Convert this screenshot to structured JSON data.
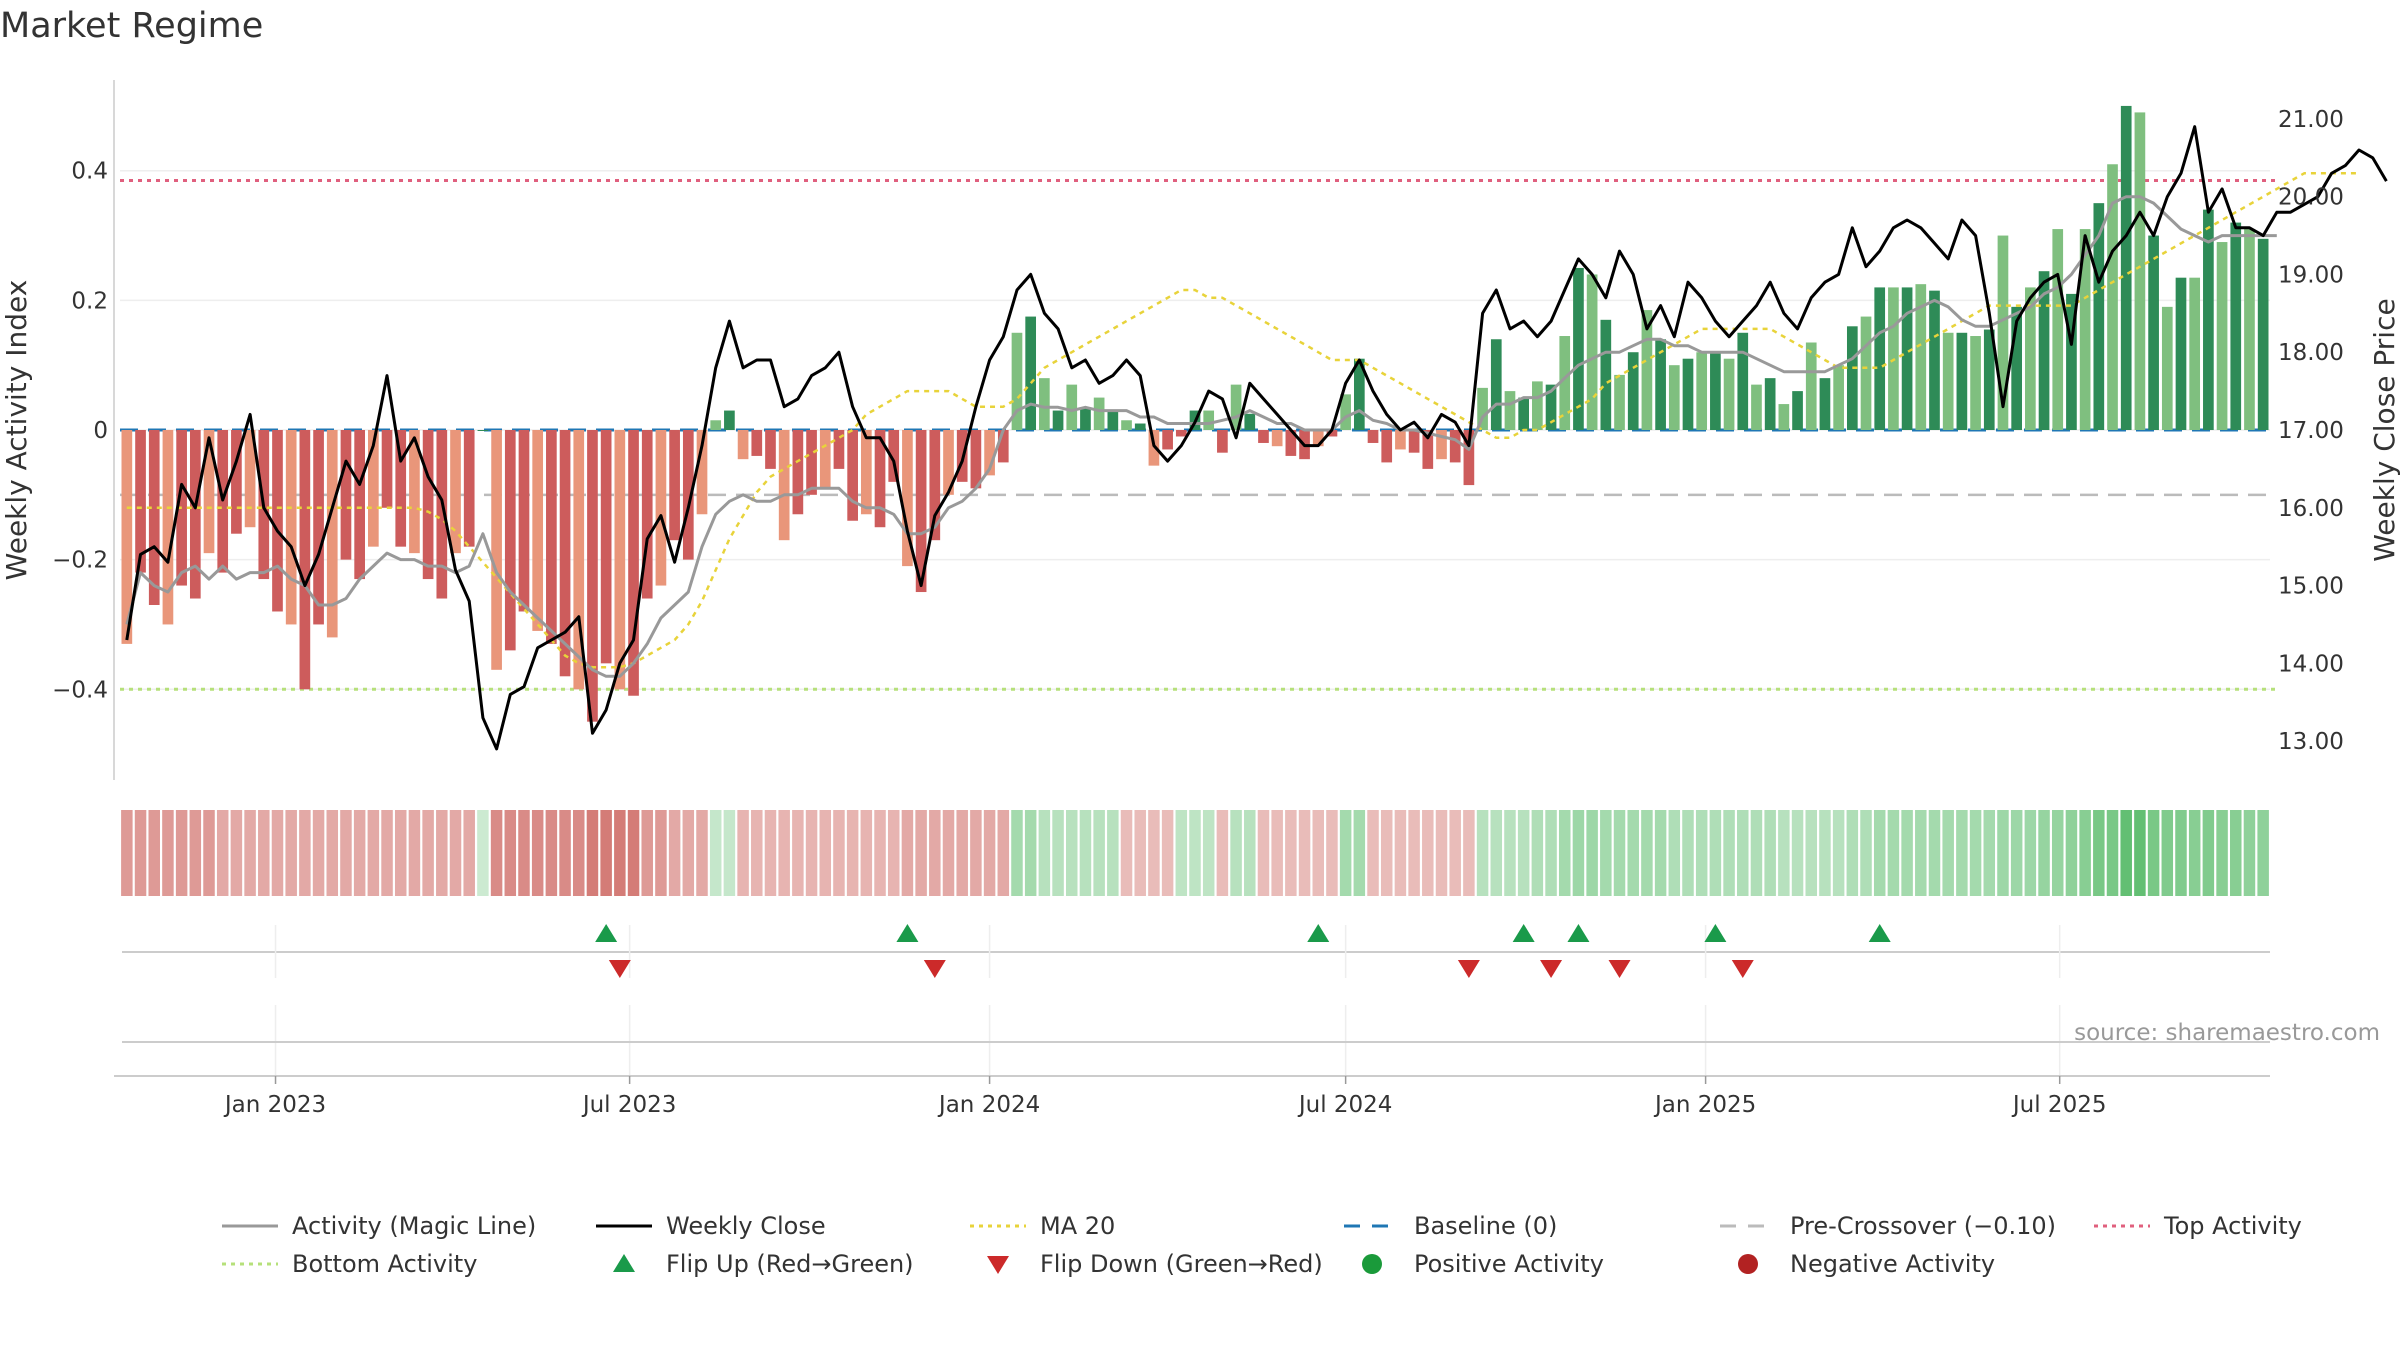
{
  "title": "Market Regime",
  "source_note": "source: sharemaestro.com",
  "colors": {
    "pos_strong": "#2e8b57",
    "pos_light": "#7fbf7f",
    "neg_strong": "#cd5c5c",
    "neg_light": "#e9967a",
    "magic_line": "#999999",
    "close_line": "#000000",
    "ma20": "#e8d33a",
    "baseline": "#1f77b4",
    "precross": "#bbbbbb",
    "top_activity": "#e0607e",
    "bottom_activity": "#b6e07a",
    "flip_up": "#1a9a4a",
    "flip_down": "#cc2a2a",
    "pos_dot": "#1a9a3a",
    "neg_dot": "#b22222"
  },
  "chart_data": {
    "type": "bar",
    "x_start": "2022-10-17",
    "x_step_days": 7,
    "x_ticks": [
      "Jan 2023",
      "Jul 2023",
      "Jan 2024",
      "Jul 2024",
      "Jan 2025",
      "Jul 2025"
    ],
    "x_tick_dates": [
      "2023-01-01",
      "2023-07-01",
      "2024-01-01",
      "2024-07-01",
      "2025-01-01",
      "2025-07-01"
    ],
    "ylabel_left": "Weekly Activity Index",
    "ylabel_right": "Weekly Close Price",
    "ylim_left": [
      -0.54,
      0.54
    ],
    "ylim_right": [
      12.5,
      21.5
    ],
    "yticks_left": [
      "−0.4",
      "−0.2",
      "0",
      "0.2",
      "0.4"
    ],
    "yticks_left_values": [
      -0.4,
      -0.2,
      0,
      0.2,
      0.4
    ],
    "yticks_right": [
      "13.00",
      "14.00",
      "15.00",
      "16.00",
      "17.00",
      "18.00",
      "19.00",
      "20.00",
      "21.00"
    ],
    "yticks_right_values": [
      13,
      14,
      15,
      16,
      17,
      18,
      19,
      20,
      21
    ],
    "reference_lines": {
      "baseline": 0,
      "pre_crossover": -0.1,
      "top_activity": 0.385,
      "bottom_activity": -0.4
    },
    "activity_bars": [
      -0.33,
      -0.22,
      -0.27,
      -0.3,
      -0.24,
      -0.26,
      -0.19,
      -0.22,
      -0.16,
      -0.15,
      -0.23,
      -0.28,
      -0.3,
      -0.4,
      -0.3,
      -0.32,
      -0.2,
      -0.23,
      -0.18,
      -0.12,
      -0.18,
      -0.19,
      -0.23,
      -0.26,
      -0.19,
      -0.18,
      -0.0,
      -0.37,
      -0.34,
      -0.28,
      -0.31,
      -0.33,
      -0.38,
      -0.4,
      -0.45,
      -0.36,
      -0.4,
      -0.41,
      -0.26,
      -0.24,
      -0.17,
      -0.2,
      -0.13,
      0.015,
      0.03,
      -0.045,
      -0.04,
      -0.06,
      -0.17,
      -0.13,
      -0.1,
      -0.09,
      -0.06,
      -0.14,
      -0.13,
      -0.15,
      -0.08,
      -0.21,
      -0.25,
      -0.17,
      -0.1,
      -0.08,
      -0.09,
      -0.07,
      -0.05,
      0.15,
      0.175,
      0.08,
      0.03,
      0.07,
      0.035,
      0.05,
      0.03,
      0.015,
      0.01,
      -0.055,
      -0.03,
      -0.01,
      0.03,
      0.03,
      -0.035,
      0.07,
      0.025,
      -0.02,
      -0.025,
      -0.04,
      -0.045,
      -0.025,
      -0.01,
      0.055,
      0.11,
      -0.02,
      -0.05,
      -0.03,
      -0.035,
      -0.06,
      -0.045,
      -0.05,
      -0.085,
      0.065,
      0.14,
      0.06,
      0.05,
      0.075,
      0.07,
      0.145,
      0.25,
      0.24,
      0.17,
      0.085,
      0.12,
      0.185,
      0.14,
      0.1,
      0.11,
      0.12,
      0.12,
      0.11,
      0.15,
      0.07,
      0.08,
      0.04,
      0.06,
      0.135,
      0.08,
      0.1,
      0.16,
      0.175,
      0.22,
      0.22,
      0.22,
      0.225,
      0.215,
      0.15,
      0.15,
      0.145,
      0.155,
      0.3,
      0.19,
      0.22,
      0.245,
      0.31,
      0.21,
      0.31,
      0.35,
      0.41,
      0.5,
      0.49,
      0.3,
      0.19,
      0.235,
      0.235,
      0.34,
      0.29,
      0.32,
      0.31,
      0.295
    ],
    "weekly_close": [
      14.3,
      15.4,
      15.5,
      15.3,
      16.3,
      16.0,
      16.9,
      16.1,
      16.6,
      17.2,
      16.0,
      15.7,
      15.5,
      15.0,
      15.4,
      16.0,
      16.6,
      16.3,
      16.8,
      17.7,
      16.6,
      16.9,
      16.4,
      16.1,
      15.2,
      14.8,
      13.3,
      12.9,
      13.6,
      13.7,
      14.2,
      14.3,
      14.4,
      14.6,
      13.1,
      13.4,
      14.0,
      14.3,
      15.6,
      15.9,
      15.3,
      16.0,
      16.8,
      17.8,
      18.4,
      17.8,
      17.9,
      17.9,
      17.3,
      17.4,
      17.7,
      17.8,
      18.0,
      17.3,
      16.9,
      16.9,
      16.6,
      15.7,
      15.0,
      15.9,
      16.2,
      16.6,
      17.3,
      17.9,
      18.2,
      18.8,
      19.0,
      18.5,
      18.3,
      17.8,
      17.9,
      17.6,
      17.7,
      17.9,
      17.7,
      16.8,
      16.6,
      16.8,
      17.1,
      17.5,
      17.4,
      16.9,
      17.6,
      17.4,
      17.2,
      17.0,
      16.8,
      16.8,
      17.0,
      17.6,
      17.9,
      17.5,
      17.2,
      17.0,
      17.1,
      16.9,
      17.2,
      17.1,
      16.8,
      18.5,
      18.8,
      18.3,
      18.4,
      18.2,
      18.4,
      18.8,
      19.2,
      19.0,
      18.7,
      19.3,
      19.0,
      18.3,
      18.6,
      18.2,
      18.9,
      18.7,
      18.4,
      18.2,
      18.4,
      18.6,
      18.9,
      18.5,
      18.3,
      18.7,
      18.9,
      19.0,
      19.6,
      19.1,
      19.3,
      19.6,
      19.7,
      19.6,
      19.4,
      19.2,
      19.7,
      19.5,
      18.5,
      17.3,
      18.4,
      18.7,
      18.9,
      19.0,
      18.1,
      19.5,
      18.9,
      19.3,
      19.5,
      19.8,
      19.5,
      20.0,
      20.3,
      20.9,
      19.8,
      20.1,
      19.6,
      19.6,
      19.5,
      19.8,
      19.8,
      19.9,
      20.0,
      20.3,
      20.4,
      20.6,
      20.5,
      20.2
    ],
    "magic_line": [
      -0.3,
      -0.22,
      -0.24,
      -0.25,
      -0.22,
      -0.21,
      -0.23,
      -0.21,
      -0.23,
      -0.22,
      -0.22,
      -0.21,
      -0.23,
      -0.24,
      -0.27,
      -0.27,
      -0.26,
      -0.23,
      -0.21,
      -0.19,
      -0.2,
      -0.2,
      -0.21,
      -0.21,
      -0.22,
      -0.21,
      -0.16,
      -0.22,
      -0.25,
      -0.27,
      -0.29,
      -0.31,
      -0.33,
      -0.35,
      -0.37,
      -0.38,
      -0.38,
      -0.36,
      -0.33,
      -0.29,
      -0.27,
      -0.25,
      -0.18,
      -0.13,
      -0.11,
      -0.1,
      -0.11,
      -0.11,
      -0.1,
      -0.1,
      -0.09,
      -0.09,
      -0.09,
      -0.11,
      -0.12,
      -0.12,
      -0.13,
      -0.16,
      -0.16,
      -0.15,
      -0.12,
      -0.11,
      -0.09,
      -0.06,
      0.0,
      0.03,
      0.04,
      0.035,
      0.035,
      0.03,
      0.035,
      0.03,
      0.03,
      0.03,
      0.02,
      0.02,
      0.01,
      0.01,
      0.01,
      0.01,
      0.015,
      0.02,
      0.03,
      0.02,
      0.01,
      0.01,
      0.0,
      0.0,
      0.0,
      0.02,
      0.03,
      0.015,
      0.01,
      0.0,
      0.0,
      -0.005,
      -0.01,
      -0.015,
      -0.03,
      0.02,
      0.04,
      0.04,
      0.05,
      0.05,
      0.06,
      0.08,
      0.1,
      0.11,
      0.12,
      0.12,
      0.13,
      0.14,
      0.14,
      0.13,
      0.13,
      0.12,
      0.12,
      0.12,
      0.12,
      0.11,
      0.1,
      0.09,
      0.09,
      0.09,
      0.09,
      0.1,
      0.11,
      0.13,
      0.15,
      0.16,
      0.18,
      0.19,
      0.2,
      0.19,
      0.17,
      0.16,
      0.16,
      0.17,
      0.18,
      0.19,
      0.21,
      0.22,
      0.24,
      0.27,
      0.3,
      0.35,
      0.36,
      0.36,
      0.35,
      0.33,
      0.31,
      0.3,
      0.29,
      0.3,
      0.3,
      0.3,
      0.3,
      0.3
    ],
    "ma20": [
      16.0,
      16.0,
      16.0,
      16.0,
      16.0,
      16.0,
      16.0,
      16.0,
      16.0,
      16.0,
      16.0,
      16.0,
      16.0,
      16.0,
      16.0,
      16.0,
      16.0,
      16.0,
      16.0,
      16.0,
      16.0,
      16.0,
      15.95,
      15.85,
      15.7,
      15.5,
      15.3,
      15.1,
      14.9,
      14.7,
      14.5,
      14.3,
      14.1,
      14.0,
      13.95,
      13.95,
      13.95,
      14.0,
      14.1,
      14.2,
      14.3,
      14.5,
      14.8,
      15.2,
      15.6,
      15.9,
      16.2,
      16.4,
      16.5,
      16.6,
      16.7,
      16.8,
      16.9,
      17.0,
      17.2,
      17.3,
      17.4,
      17.5,
      17.5,
      17.5,
      17.5,
      17.4,
      17.3,
      17.3,
      17.3,
      17.4,
      17.6,
      17.8,
      17.9,
      18.0,
      18.1,
      18.2,
      18.3,
      18.4,
      18.5,
      18.6,
      18.7,
      18.8,
      18.8,
      18.7,
      18.7,
      18.6,
      18.5,
      18.4,
      18.3,
      18.2,
      18.1,
      18.0,
      17.9,
      17.9,
      17.9,
      17.8,
      17.7,
      17.6,
      17.5,
      17.4,
      17.3,
      17.2,
      17.1,
      17.0,
      16.9,
      16.9,
      17.0,
      17.0,
      17.1,
      17.2,
      17.3,
      17.4,
      17.6,
      17.7,
      17.8,
      17.9,
      18.0,
      18.1,
      18.2,
      18.3,
      18.3,
      18.3,
      18.3,
      18.3,
      18.3,
      18.2,
      18.1,
      18.0,
      17.9,
      17.8,
      17.8,
      17.8,
      17.8,
      17.9,
      18.0,
      18.1,
      18.2,
      18.3,
      18.4,
      18.5,
      18.6,
      18.6,
      18.6,
      18.6,
      18.6,
      18.6,
      18.6,
      18.7,
      18.8,
      18.9,
      19.0,
      19.1,
      19.2,
      19.3,
      19.4,
      19.5,
      19.6,
      19.7,
      19.8,
      19.9,
      20.0,
      20.1,
      20.2,
      20.3,
      20.3,
      20.3,
      20.3,
      20.3
    ],
    "heat_strip": [
      -0.4,
      -0.4,
      -0.4,
      -0.4,
      -0.4,
      -0.4,
      -0.4,
      -0.3,
      -0.3,
      -0.3,
      -0.3,
      -0.3,
      -0.3,
      -0.3,
      -0.3,
      -0.3,
      -0.3,
      -0.3,
      -0.3,
      -0.3,
      -0.3,
      -0.3,
      -0.3,
      -0.3,
      -0.3,
      -0.3,
      0.05,
      -0.5,
      -0.5,
      -0.5,
      -0.5,
      -0.5,
      -0.5,
      -0.5,
      -0.6,
      -0.6,
      -0.6,
      -0.6,
      -0.4,
      -0.4,
      -0.3,
      -0.3,
      -0.3,
      0.1,
      0.1,
      -0.2,
      -0.2,
      -0.2,
      -0.2,
      -0.2,
      -0.2,
      -0.2,
      -0.2,
      -0.2,
      -0.2,
      -0.2,
      -0.2,
      -0.3,
      -0.3,
      -0.3,
      -0.3,
      -0.3,
      -0.3,
      -0.3,
      -0.3,
      0.3,
      0.3,
      0.2,
      0.2,
      0.2,
      0.2,
      0.2,
      0.2,
      -0.15,
      -0.15,
      -0.15,
      -0.15,
      0.15,
      0.15,
      0.15,
      -0.15,
      0.2,
      0.2,
      -0.15,
      -0.15,
      -0.15,
      -0.15,
      -0.15,
      -0.15,
      0.3,
      0.3,
      -0.15,
      -0.15,
      -0.15,
      -0.15,
      -0.15,
      -0.15,
      -0.15,
      -0.15,
      0.2,
      0.2,
      0.2,
      0.2,
      0.25,
      0.25,
      0.3,
      0.35,
      0.35,
      0.3,
      0.3,
      0.3,
      0.3,
      0.3,
      0.25,
      0.25,
      0.25,
      0.25,
      0.25,
      0.25,
      0.25,
      0.25,
      0.2,
      0.2,
      0.2,
      0.2,
      0.2,
      0.25,
      0.25,
      0.3,
      0.3,
      0.3,
      0.3,
      0.3,
      0.3,
      0.3,
      0.3,
      0.3,
      0.35,
      0.35,
      0.35,
      0.4,
      0.4,
      0.45,
      0.5,
      0.6,
      0.6,
      0.75,
      0.75,
      0.6,
      0.55,
      0.55,
      0.5,
      0.55,
      0.5,
      0.5,
      0.45,
      0.45
    ],
    "flip_up_weeks": [
      35,
      57,
      87,
      102,
      106,
      116,
      128
    ],
    "flip_down_weeks": [
      36,
      59,
      98,
      104,
      109,
      118
    ],
    "legend": [
      {
        "label": "Activity (Magic Line)",
        "kind": "line",
        "color_key": "magic_line"
      },
      {
        "label": "Weekly Close",
        "kind": "line",
        "color_key": "close_line"
      },
      {
        "label": "MA 20",
        "kind": "dotted",
        "color_key": "ma20"
      },
      {
        "label": "Baseline (0)",
        "kind": "dashed",
        "color_key": "baseline"
      },
      {
        "label": "Pre-Crossover (−0.10)",
        "kind": "dashed",
        "color_key": "precross"
      },
      {
        "label": "Top Activity",
        "kind": "dotted",
        "color_key": "top_activity"
      },
      {
        "label": "Bottom Activity",
        "kind": "dotted",
        "color_key": "bottom_activity"
      },
      {
        "label": "Flip Up (Red→Green)",
        "kind": "tri-up",
        "color_key": "flip_up"
      },
      {
        "label": "Flip Down (Green→Red)",
        "kind": "tri-down",
        "color_key": "flip_down"
      },
      {
        "label": "Positive Activity",
        "kind": "dot",
        "color_key": "pos_dot"
      },
      {
        "label": "Negative Activity",
        "kind": "dot",
        "color_key": "neg_dot"
      }
    ]
  }
}
